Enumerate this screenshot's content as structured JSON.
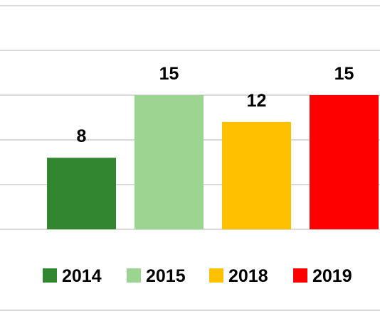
{
  "chart_data": {
    "type": "bar",
    "categories": [
      "2014",
      "2015",
      "2018",
      "2019"
    ],
    "values": [
      8,
      15,
      12,
      15
    ],
    "colors": [
      "#31862f",
      "#9bd591",
      "#ffc000",
      "#ff0000"
    ],
    "data_labels": [
      "8",
      "15",
      "12",
      "15"
    ],
    "ylim": [
      0,
      15
    ],
    "grid": true,
    "legend": {
      "position": "bottom",
      "entries": [
        {
          "label": "2014",
          "color": "#31862f"
        },
        {
          "label": "2015",
          "color": "#9bd591"
        },
        {
          "label": "2018",
          "color": "#ffc000"
        },
        {
          "label": "2019",
          "color": "#ff0000"
        }
      ]
    }
  }
}
